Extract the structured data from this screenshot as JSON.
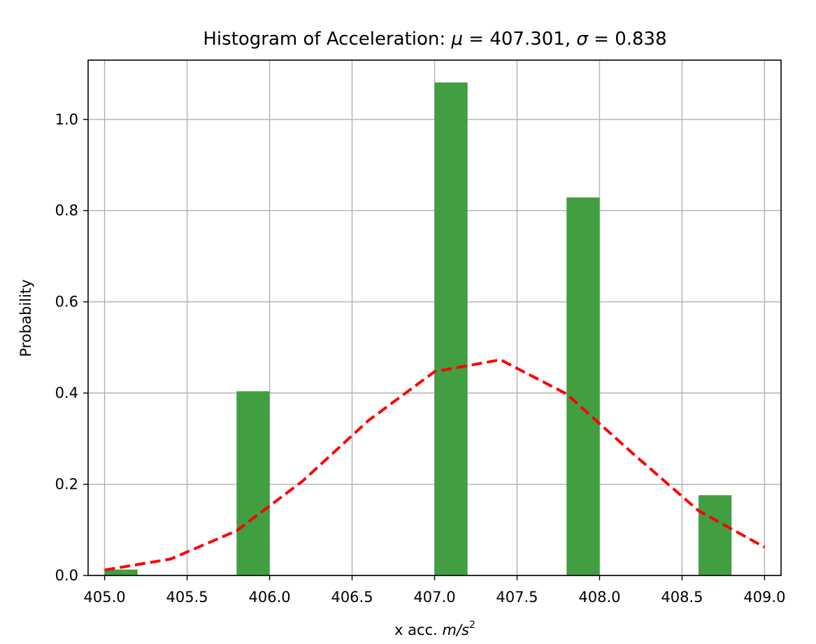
{
  "chart_data": {
    "type": "bar",
    "title_prefix": "Histogram of Acceleration",
    "mu_symbol": "μ",
    "mu_value": "407.301",
    "sigma_symbol": "σ",
    "sigma_value": "0.838",
    "xlabel_prefix": "x acc. ",
    "xlabel_unit": "m/s",
    "xlabel_exp": "2",
    "ylabel": "Probability",
    "xlim": [
      404.9,
      409.1
    ],
    "ylim": [
      0,
      1.13
    ],
    "grid": true,
    "x_ticks": [
      405.0,
      405.5,
      406.0,
      406.5,
      407.0,
      407.5,
      408.0,
      408.5,
      409.0
    ],
    "x_tick_labels": [
      "405.0",
      "405.5",
      "406.0",
      "406.5",
      "407.0",
      "407.5",
      "408.0",
      "408.5",
      "409.0"
    ],
    "y_ticks": [
      0.0,
      0.2,
      0.4,
      0.6,
      0.8,
      1.0
    ],
    "y_tick_labels": [
      "0.0",
      "0.2",
      "0.4",
      "0.6",
      "0.8",
      "1.0"
    ],
    "bars": {
      "color": "#419e41",
      "bins": [
        {
          "x0": 405.0,
          "x1": 405.4,
          "value": 0.013
        },
        {
          "x0": 405.4,
          "x1": 405.8,
          "value": 0.0
        },
        {
          "x0": 405.8,
          "x1": 406.2,
          "value": 0.404
        },
        {
          "x0": 406.2,
          "x1": 406.6,
          "value": 0.0
        },
        {
          "x0": 406.6,
          "x1": 407.0,
          "value": 0.0
        },
        {
          "x0": 407.0,
          "x1": 407.4,
          "value": 1.081
        },
        {
          "x0": 407.4,
          "x1": 407.8,
          "value": 0.0
        },
        {
          "x0": 407.8,
          "x1": 408.2,
          "value": 0.829
        },
        {
          "x0": 408.2,
          "x1": 408.6,
          "value": 0.0
        },
        {
          "x0": 408.6,
          "x1": 409.0,
          "value": 0.176
        }
      ]
    },
    "fit_line": {
      "color": "#ff0000",
      "style": "dashed",
      "x": [
        405.0,
        405.4,
        405.8,
        406.2,
        406.6,
        407.0,
        407.4,
        407.8,
        408.2,
        408.6,
        409.0
      ],
      "y": [
        0.012,
        0.036,
        0.098,
        0.207,
        0.34,
        0.447,
        0.473,
        0.398,
        0.268,
        0.142,
        0.062
      ]
    }
  }
}
